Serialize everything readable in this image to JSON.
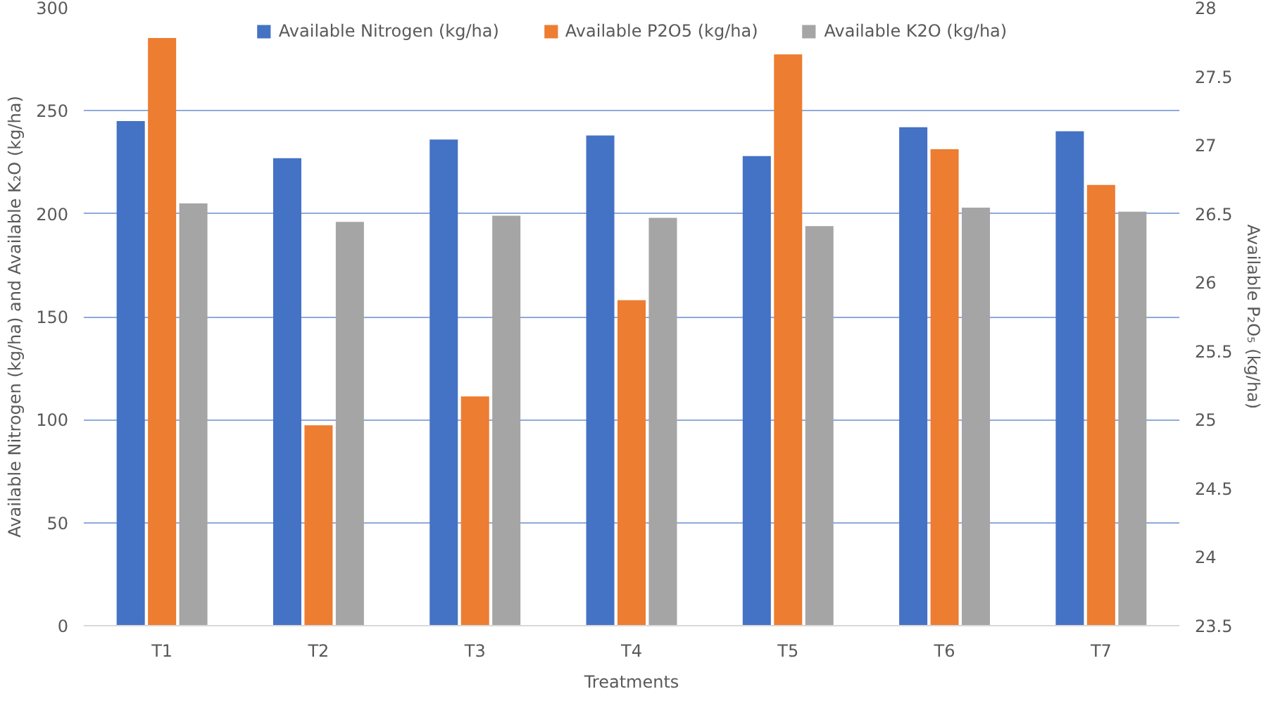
{
  "chart_data": {
    "type": "bar",
    "xlabel": "Treatments",
    "ylabel": "Available Nitrogen (kg/ha) and Available K₂O (kg/ha)",
    "y2label": "Available P₂O₅ (kg/ha)",
    "categories": [
      "T1",
      "T2",
      "T3",
      "T4",
      "T5",
      "T6",
      "T7"
    ],
    "series": [
      {
        "name": "Available Nitrogen (kg/ha)",
        "color": "#4472c4",
        "values": [
          245,
          227,
          236,
          238,
          228,
          242,
          240
        ]
      },
      {
        "name": "Available P2O5 (kg/ha)",
        "color": "#ed7d31",
        "axis": "y2",
        "values": [
          27.78,
          24.96,
          25.17,
          25.87,
          27.66,
          26.97,
          26.71
        ]
      },
      {
        "name": "Available K2O (kg/ha)",
        "color": "#a5a5a5",
        "values": [
          205,
          196,
          199,
          198,
          194,
          203,
          201
        ]
      }
    ],
    "ylim": [
      0,
      300
    ],
    "yticks": [
      0,
      50,
      100,
      150,
      200,
      250,
      300
    ],
    "y2lim": [
      23.5,
      28
    ],
    "y2ticks": [
      23.5,
      24,
      24.5,
      25,
      25.5,
      26,
      26.5,
      27,
      27.5,
      28
    ],
    "grid": "y",
    "legend": "top"
  }
}
